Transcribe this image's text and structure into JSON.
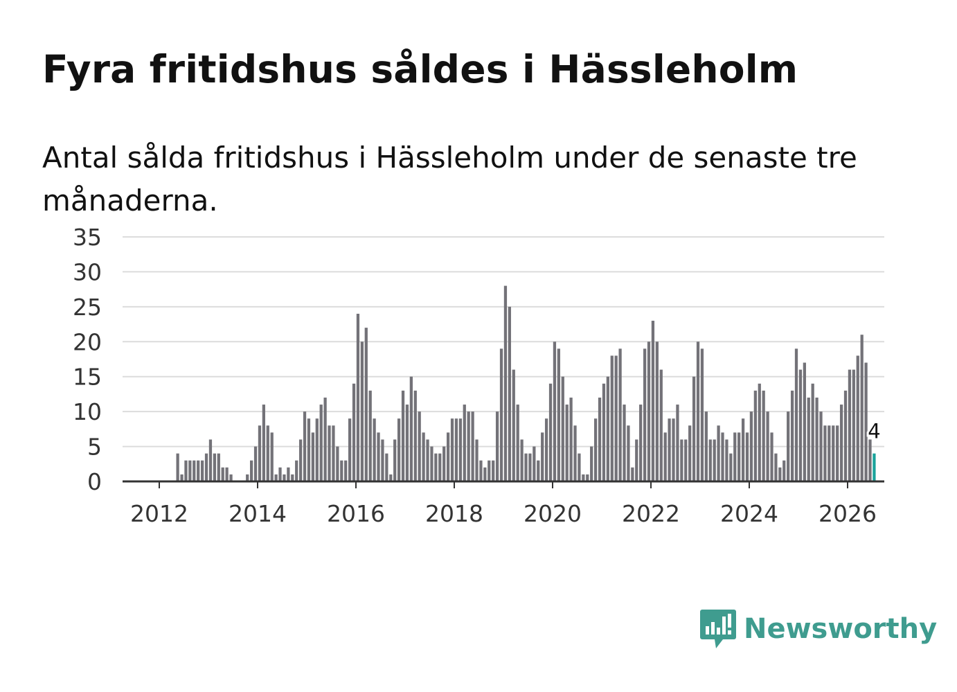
{
  "title": "Fyra fritidshus såldes i Hässleholm",
  "subtitle": "Antal sålda fritidshus i Hässleholm under de senaste tre månaderna.",
  "brand": {
    "name": "Newsworthy",
    "icon": "newsworthy-logo-icon",
    "color": "#3f9c8f"
  },
  "colors": {
    "bar": "#737278",
    "highlight": "#1aa39b",
    "grid": "#dcdcdc",
    "axis": "#333333"
  },
  "chart_data": {
    "type": "bar",
    "title": "Fyra fritidshus såldes i Hässleholm",
    "xlabel": "",
    "ylabel": "",
    "x_start": 2011.625,
    "bar_interval_years": 0.08333,
    "ylim": [
      0,
      35
    ],
    "y_ticks": [
      0,
      5,
      10,
      15,
      20,
      25,
      30,
      35
    ],
    "x_ticks": [
      2012,
      2014,
      2016,
      2018,
      2020,
      2022,
      2024,
      2026
    ],
    "grid": true,
    "values": [
      0,
      0,
      0,
      0,
      0,
      0,
      0,
      0,
      0,
      4,
      1,
      3,
      3,
      3,
      3,
      3,
      4,
      6,
      4,
      4,
      2,
      2,
      1,
      0,
      0,
      0,
      1,
      3,
      5,
      8,
      11,
      8,
      7,
      1,
      2,
      1,
      2,
      1,
      3,
      6,
      10,
      9,
      7,
      9,
      11,
      12,
      8,
      8,
      5,
      3,
      3,
      9,
      14,
      24,
      20,
      22,
      13,
      9,
      7,
      6,
      4,
      1,
      6,
      9,
      13,
      11,
      15,
      13,
      10,
      7,
      6,
      5,
      4,
      4,
      5,
      7,
      9,
      9,
      9,
      11,
      10,
      10,
      6,
      3,
      2,
      3,
      3,
      10,
      19,
      28,
      25,
      16,
      11,
      6,
      4,
      4,
      5,
      3,
      7,
      9,
      14,
      20,
      19,
      15,
      11,
      12,
      8,
      4,
      1,
      1,
      5,
      9,
      12,
      14,
      15,
      18,
      18,
      19,
      11,
      8,
      2,
      6,
      11,
      19,
      20,
      23,
      20,
      16,
      7,
      9,
      9,
      11,
      6,
      6,
      8,
      15,
      20,
      19,
      10,
      6,
      6,
      8,
      7,
      6,
      4,
      7,
      7,
      9,
      7,
      10,
      13,
      14,
      13,
      10,
      7,
      4,
      2,
      3,
      10,
      13,
      19,
      16,
      17,
      12,
      14,
      12,
      10,
      8,
      8,
      8,
      8,
      11,
      13,
      16,
      16,
      18,
      21,
      17,
      6,
      4
    ],
    "highlight_last": true,
    "annotation": {
      "label": "4",
      "value": 4
    }
  }
}
